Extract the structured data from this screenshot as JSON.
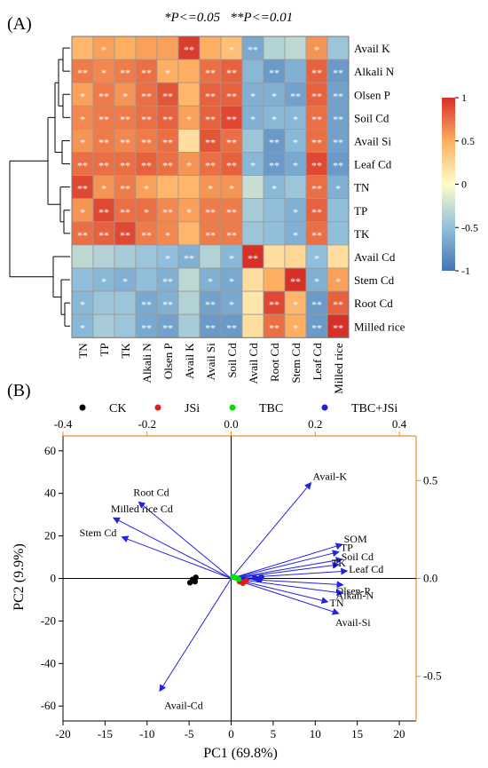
{
  "panel_a": {
    "label": "(A)",
    "significance": "*P<=0.05   **P<=0.01",
    "legend_colors": [
      "#d73027",
      "#f46d43",
      "#fdae61",
      "#fee090",
      "#e0f3f8",
      "#abd9e9",
      "#74add1",
      "#4575b4"
    ],
    "legend_ticks": [
      "1",
      "0.5",
      "0",
      "-0.5",
      "-1"
    ]
  },
  "panel_b": {
    "label": "(B)",
    "groups": [
      {
        "name": "CK",
        "color": "#000000"
      },
      {
        "name": "JSi",
        "color": "#e41a1c"
      },
      {
        "name": "TBC",
        "color": "#00e000"
      },
      {
        "name": "TBC+JSi",
        "color": "#1f1fe0"
      }
    ],
    "xlabel": "PC1 (69.8%)",
    "ylabel": "PC2 (9.9%)",
    "loading_axis_color": "#f28c28",
    "arrow_color": "#2424e0"
  },
  "chart_data": [
    {
      "type": "heatmap",
      "rows": [
        "Avail K",
        "Alkali N",
        "Olsen P",
        "Soil Cd",
        "Avail Si",
        "Leaf Cd",
        "TN",
        "TP",
        "TK",
        "Avail Cd",
        "Stem Cd",
        "Root Cd",
        "Milled rice"
      ],
      "columns": [
        "TN",
        "TP",
        "TK",
        "Alkali N",
        "Olsen P",
        "Avail K",
        "Avail Si",
        "Soil Cd",
        "Avail Cd",
        "Root Cd",
        "Stem Cd",
        "Leaf Cd",
        "Milled rice"
      ],
      "values": [
        [
          0.45,
          0.55,
          0.5,
          0.55,
          0.55,
          0.95,
          0.5,
          0.4,
          -0.65,
          -0.35,
          -0.3,
          0.6,
          -0.45
        ],
        [
          0.7,
          0.65,
          0.7,
          0.75,
          0.5,
          0.5,
          0.75,
          0.8,
          -0.55,
          -0.75,
          -0.6,
          0.8,
          -0.75
        ],
        [
          0.55,
          0.7,
          0.6,
          0.75,
          0.85,
          0.45,
          0.8,
          0.8,
          -0.6,
          -0.6,
          -0.7,
          0.8,
          -0.7
        ],
        [
          0.65,
          0.7,
          0.7,
          0.75,
          0.8,
          0.55,
          0.8,
          0.9,
          -0.6,
          -0.55,
          -0.55,
          0.75,
          -0.7
        ],
        [
          0.6,
          0.7,
          0.65,
          0.7,
          0.75,
          0.2,
          0.85,
          0.75,
          -0.45,
          -0.75,
          -0.55,
          0.75,
          -0.7
        ],
        [
          0.75,
          0.75,
          0.75,
          0.8,
          0.75,
          0.6,
          0.75,
          0.8,
          -0.55,
          -0.75,
          -0.65,
          0.9,
          -0.75
        ],
        [
          0.9,
          0.6,
          0.7,
          0.55,
          0.45,
          0.45,
          0.6,
          0.6,
          -0.25,
          -0.55,
          -0.45,
          0.75,
          -0.6
        ],
        [
          0.6,
          0.9,
          0.75,
          0.75,
          0.65,
          0.55,
          0.7,
          0.7,
          -0.4,
          -0.5,
          -0.6,
          0.8,
          -0.5
        ],
        [
          0.75,
          0.8,
          0.9,
          0.7,
          0.65,
          0.45,
          0.7,
          0.7,
          -0.45,
          -0.5,
          -0.6,
          0.75,
          -0.5
        ],
        [
          -0.3,
          -0.35,
          -0.4,
          -0.45,
          -0.5,
          -0.6,
          -0.35,
          -0.55,
          1.0,
          0.2,
          0.25,
          -0.5,
          0.2
        ],
        [
          -0.5,
          -0.55,
          -0.6,
          -0.5,
          -0.6,
          -0.3,
          -0.6,
          -0.65,
          0.2,
          0.5,
          1.0,
          -0.6,
          0.55
        ],
        [
          -0.55,
          -0.45,
          -0.45,
          -0.65,
          -0.6,
          -0.35,
          -0.7,
          -0.65,
          0.15,
          0.9,
          0.45,
          -0.75,
          0.8
        ],
        [
          -0.55,
          -0.4,
          -0.45,
          -0.65,
          -0.7,
          -0.4,
          -0.75,
          -0.75,
          0.2,
          0.75,
          0.5,
          -0.75,
          1.0
        ]
      ],
      "stars": [
        [
          "",
          "*",
          "",
          "",
          "",
          "**",
          "",
          "*",
          "**",
          "",
          "",
          "*",
          ""
        ],
        [
          "**",
          "*",
          "**",
          "**",
          "*",
          "",
          "**",
          "**",
          "",
          "**",
          "",
          "**",
          "**"
        ],
        [
          "*",
          "**",
          "*",
          "**",
          "**",
          "",
          "**",
          "**",
          "*",
          "*",
          "**",
          "**",
          "**"
        ],
        [
          "*",
          "**",
          "**",
          "**",
          "**",
          "*",
          "**",
          "**",
          "*",
          "*",
          "*",
          "**",
          "**"
        ],
        [
          "*",
          "**",
          "**",
          "**",
          "**",
          "",
          "**",
          "**",
          "",
          "**",
          "*",
          "**",
          "**"
        ],
        [
          "**",
          "**",
          "**",
          "**",
          "**",
          "*",
          "**",
          "**",
          "*",
          "**",
          "*",
          "**",
          "**"
        ],
        [
          "**",
          "*",
          "**",
          "*",
          "",
          "",
          "*",
          "*",
          "",
          "*",
          "",
          "**",
          "*"
        ],
        [
          "*",
          "**",
          "**",
          "*",
          "**",
          "*",
          "**",
          "**",
          "",
          "",
          "*",
          "**",
          ""
        ],
        [
          "**",
          "**",
          "**",
          "**",
          "*",
          "",
          "**",
          "**",
          "",
          "",
          "*",
          "**",
          ""
        ],
        [
          "",
          "",
          "",
          "",
          "*",
          "**",
          "",
          "*",
          "**",
          "",
          "",
          "*",
          ""
        ],
        [
          "",
          "*",
          "*",
          "",
          "**",
          "",
          "*",
          "*",
          "",
          "",
          "**",
          "*",
          "*"
        ],
        [
          "*",
          "",
          "",
          "**",
          "**",
          "",
          "**",
          "*",
          "",
          "**",
          "*",
          "**",
          "**"
        ],
        [
          "*",
          "",
          "",
          "**",
          "**",
          "",
          "**",
          "**",
          "",
          "**",
          "*",
          "**",
          "**"
        ]
      ],
      "colorbar_range": [
        -1,
        1
      ]
    },
    {
      "type": "scatter",
      "x_range": [
        -20,
        22
      ],
      "y_range": [
        -67,
        67
      ],
      "x_ticks": [
        -20,
        -15,
        -10,
        -5,
        0,
        5,
        10,
        15,
        20
      ],
      "y_ticks": [
        -60,
        -40,
        -20,
        0,
        20,
        40,
        60
      ],
      "loading_x_ticks": [
        -0.4,
        -0.2,
        0.0,
        0.2,
        0.4
      ],
      "loading_y_ticks": [
        0.5,
        0.0,
        -0.5
      ],
      "series": [
        {
          "name": "CK",
          "points": [
            [
              -4.9,
              -2
            ],
            [
              -4.6,
              -0.5
            ],
            [
              -4.2,
              0.5
            ],
            [
              -4.3,
              -1.5
            ]
          ]
        },
        {
          "name": "JSi",
          "points": [
            [
              1.0,
              -1.5
            ],
            [
              1.4,
              -2.2
            ],
            [
              1.8,
              -1.0
            ]
          ]
        },
        {
          "name": "TBC",
          "points": [
            [
              0.2,
              0.8
            ],
            [
              0.6,
              0.2
            ],
            [
              0.9,
              -0.3
            ]
          ]
        },
        {
          "name": "TBC+JSi",
          "points": [
            [
              2.8,
              0.3
            ],
            [
              3.2,
              -0.3
            ],
            [
              3.6,
              0.6
            ],
            [
              3.4,
              -0.6
            ]
          ]
        }
      ],
      "vectors": [
        {
          "label": "Avail-K",
          "x": 9.5,
          "y": 45
        },
        {
          "label": "SOM",
          "x": 13.2,
          "y": 16
        },
        {
          "label": "TP",
          "x": 12.8,
          "y": 12.5
        },
        {
          "label": "Soil Cd",
          "x": 13.2,
          "y": 9
        },
        {
          "label": "TK",
          "x": 12.8,
          "y": 6.5
        },
        {
          "label": "Leaf Cd",
          "x": 13.8,
          "y": 3.5
        },
        {
          "label": "Olsen-P",
          "x": 13.3,
          "y": -3
        },
        {
          "label": "Alkali-N",
          "x": 13.3,
          "y": -7
        },
        {
          "label": "TN",
          "x": 11.5,
          "y": -11
        },
        {
          "label": "Avail-Si",
          "x": 12.8,
          "y": -16.5
        },
        {
          "label": "Root Cd",
          "x": -11,
          "y": 36
        },
        {
          "label": "Milled rice Cd",
          "x": -14,
          "y": 28.5
        },
        {
          "label": "Stem Cd",
          "x": -13,
          "y": 19.5
        },
        {
          "label": "Avail-Cd",
          "x": -8.5,
          "y": -53
        }
      ]
    }
  ]
}
